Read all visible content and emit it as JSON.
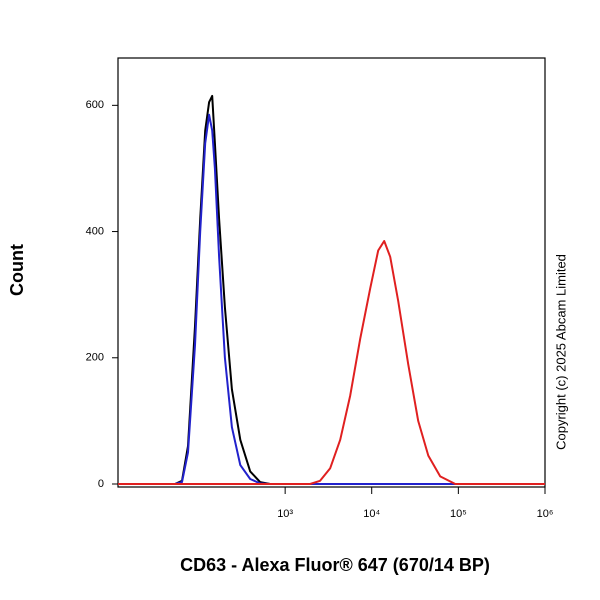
{
  "chart_data": {
    "type": "histogram-overlay",
    "xlabel": "CD63 - Alexa Fluor® 647 (670/14 BP)",
    "ylabel": "Count",
    "annotation": "Copyright (c) 2025 Abcam Limited",
    "xscale": "biexponential",
    "xlim": [
      -200,
      1000000
    ],
    "ylim": [
      0,
      675
    ],
    "xticks": [
      {
        "value": 1000,
        "label": "10³"
      },
      {
        "value": 10000,
        "label": "10⁴"
      },
      {
        "value": 100000,
        "label": "10⁵"
      },
      {
        "value": 1000000,
        "label": "10⁶"
      }
    ],
    "yticks": [
      0,
      200,
      400,
      600
    ],
    "series": [
      {
        "color": "#000000",
        "x": [
          -200,
          7,
          26,
          43,
          64,
          81,
          99,
          114,
          127,
          139,
          159,
          190,
          233,
          296,
          390,
          511,
          669,
          1000000
        ],
        "values": [
          0,
          0,
          5,
          60,
          250,
          420,
          560,
          605,
          615,
          540,
          420,
          280,
          150,
          70,
          20,
          3,
          0,
          0
        ]
      },
      {
        "color": "#2222cc",
        "x": [
          -200,
          7,
          26,
          43,
          64,
          81,
          99,
          114,
          127,
          139,
          159,
          190,
          233,
          296,
          390,
          511,
          669,
          1000000
        ],
        "values": [
          0,
          0,
          3,
          50,
          220,
          400,
          540,
          585,
          560,
          500,
          360,
          200,
          90,
          30,
          8,
          1,
          0,
          0
        ]
      },
      {
        "color": "#e02020",
        "x": [
          -200,
          1945,
          2540,
          3315,
          4325,
          5642,
          7361,
          9606,
          11888,
          13930,
          16350,
          20230,
          26390,
          34430,
          44940,
          61790,
          92100,
          1000000
        ],
        "values": [
          0,
          0,
          5,
          25,
          70,
          140,
          230,
          310,
          370,
          385,
          360,
          290,
          190,
          100,
          45,
          12,
          0,
          0
        ]
      }
    ]
  }
}
